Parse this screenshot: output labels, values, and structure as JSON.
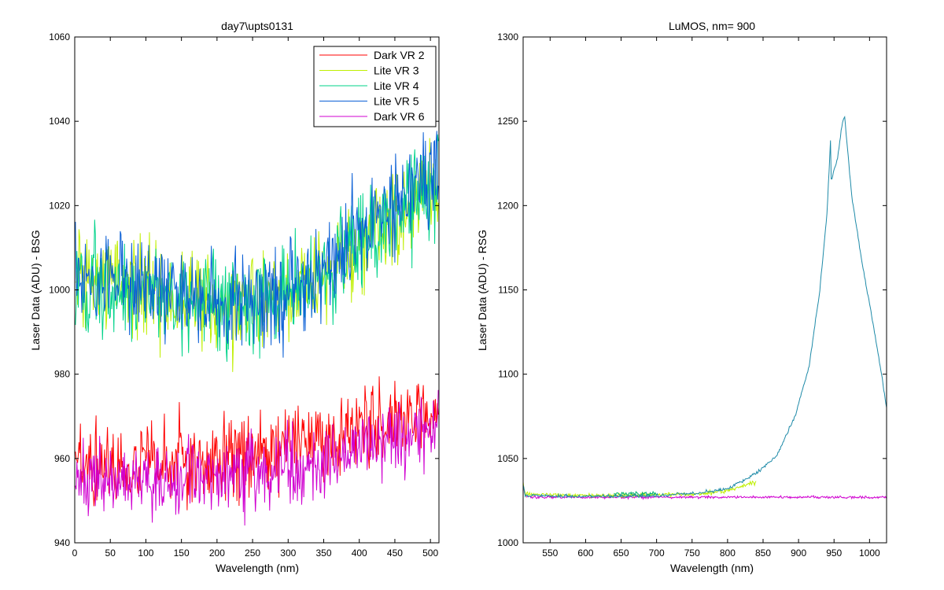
{
  "chart_data": [
    {
      "type": "line",
      "title": "day7\\upts0131",
      "xlabel": "Wavelength (nm)",
      "ylabel": "Laser Data (ADU) - BSG",
      "xlim": [
        0,
        512
      ],
      "ylim": [
        940,
        1060
      ],
      "x_ticks": [
        "0",
        "50",
        "100",
        "150",
        "200",
        "250",
        "300",
        "350",
        "400",
        "450",
        "500"
      ],
      "y_ticks": [
        "940",
        "960",
        "980",
        "1000",
        "1020",
        "1040",
        "1060"
      ],
      "legend_placement": "top-right",
      "x_range": [
        1,
        511
      ],
      "series": [
        {
          "name": "Dark VR 2",
          "color": "#ff0000",
          "noise": 5,
          "trend": [
            [
              0,
              958
            ],
            [
              100,
              958
            ],
            [
              200,
              959
            ],
            [
              300,
              963
            ],
            [
              400,
              966
            ],
            [
              511,
              971
            ]
          ]
        },
        {
          "name": "Lite VR 3",
          "color": "#bfef00",
          "noise": 6,
          "trend": [
            [
              0,
              1003
            ],
            [
              80,
              1001
            ],
            [
              150,
              998
            ],
            [
              220,
              996
            ],
            [
              300,
              999
            ],
            [
              350,
              1003
            ],
            [
              400,
              1010
            ],
            [
              450,
              1016
            ],
            [
              511,
              1024
            ]
          ]
        },
        {
          "name": "Lite VR 4",
          "color": "#00d38a",
          "noise": 6,
          "trend": [
            [
              0,
              1002
            ],
            [
              80,
              1000
            ],
            [
              150,
              998
            ],
            [
              220,
              996
            ],
            [
              300,
              999
            ],
            [
              350,
              1002
            ],
            [
              400,
              1012
            ],
            [
              450,
              1018
            ],
            [
              511,
              1026
            ]
          ]
        },
        {
          "name": "Lite VR 5",
          "color": "#0a5fd6",
          "noise": 6,
          "trend": [
            [
              0,
              1004
            ],
            [
              80,
              1002
            ],
            [
              150,
              999
            ],
            [
              220,
              997
            ],
            [
              300,
              1000
            ],
            [
              350,
              1004
            ],
            [
              400,
              1014
            ],
            [
              450,
              1020
            ],
            [
              511,
              1028
            ]
          ]
        },
        {
          "name": "Dark VR 6",
          "color": "#d000d0",
          "noise": 4.5,
          "trend": [
            [
              0,
              954
            ],
            [
              100,
              954
            ],
            [
              200,
              956
            ],
            [
              300,
              958
            ],
            [
              400,
              962
            ],
            [
              511,
              968
            ]
          ]
        }
      ]
    },
    {
      "type": "line",
      "title": "LuMOS, nm= 900",
      "xlabel": "Wavelength (nm)",
      "ylabel": "Laser Data (ADU) - RSG",
      "xlim": [
        512,
        1024
      ],
      "ylim": [
        1000,
        1300
      ],
      "x_ticks": [
        "550",
        "600",
        "650",
        "700",
        "750",
        "800",
        "850",
        "900",
        "950",
        "1000"
      ],
      "y_ticks": [
        "1000",
        "1050",
        "1100",
        "1150",
        "1200",
        "1250",
        "1300"
      ],
      "series": [
        {
          "color": "#d000d0",
          "noise": 0.4,
          "x_range": [
            512,
            1024
          ],
          "trend": [
            [
              512,
              1034
            ],
            [
              515,
              1028
            ],
            [
              520,
              1027
            ],
            [
              1024,
              1027
            ]
          ]
        },
        {
          "color": "#bfef00",
          "noise": 0.6,
          "x_range": [
            512,
            840
          ],
          "trend": [
            [
              512,
              1035
            ],
            [
              515,
              1029
            ],
            [
              600,
              1028
            ],
            [
              700,
              1028.5
            ],
            [
              760,
              1029
            ],
            [
              800,
              1031
            ],
            [
              840,
              1036
            ]
          ]
        },
        {
          "color": "#00b070",
          "noise": 0.6,
          "x_range": [
            640,
            700
          ],
          "trend": [
            [
              640,
              1029
            ],
            [
              700,
              1029
            ]
          ]
        },
        {
          "color": "#1e8aa8",
          "noise": 0.5,
          "x_range": [
            512,
            1024
          ],
          "trend": [
            [
              512,
              1034
            ],
            [
              515,
              1028
            ],
            [
              600,
              1027.5
            ],
            [
              700,
              1028
            ],
            [
              750,
              1029
            ],
            [
              800,
              1032
            ],
            [
              840,
              1041
            ],
            [
              870,
              1052
            ],
            [
              895,
              1075
            ],
            [
              915,
              1105
            ],
            [
              930,
              1150
            ],
            [
              940,
              1195
            ],
            [
              945,
              1238
            ],
            [
              946,
              1215
            ],
            [
              955,
              1228
            ],
            [
              962,
              1250
            ],
            [
              965,
              1253
            ],
            [
              975,
              1205
            ],
            [
              990,
              1165
            ],
            [
              1005,
              1130
            ],
            [
              1015,
              1105
            ],
            [
              1024,
              1080
            ]
          ]
        }
      ]
    }
  ]
}
